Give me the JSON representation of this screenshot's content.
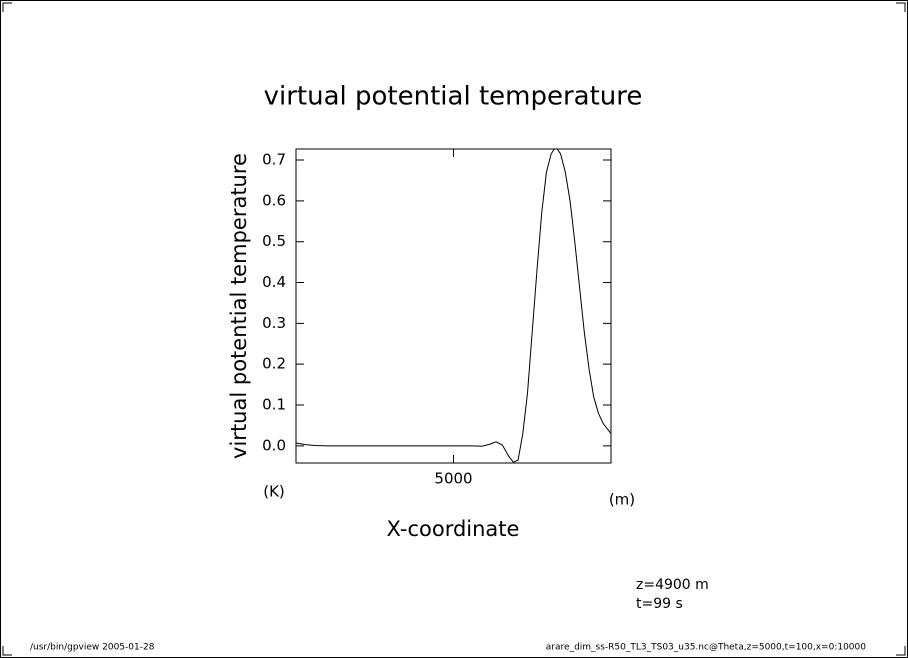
{
  "chart_data": {
    "type": "line",
    "title": "virtual potential temperature",
    "y_label": "virtual potential temperature",
    "y_unit": "(K)",
    "x_label": "X-coordinate",
    "x_unit": "(m)",
    "annotations": [
      "z=4900 m",
      "t=99 s"
    ],
    "footer_left": "/usr/bin/gpview  2005-01-28",
    "footer_right": "arare_dim_ss-R50_TL3_TS03_u35.nc@Theta,z=5000,t=100,x=0:10000",
    "x": [
      0,
      300,
      600,
      1000,
      2000,
      3000,
      4000,
      5000,
      5600,
      5900,
      6150,
      6350,
      6550,
      6750,
      6900,
      7050,
      7200,
      7350,
      7500,
      7650,
      7800,
      7950,
      8100,
      8200,
      8290,
      8400,
      8550,
      8700,
      8850,
      9000,
      9150,
      9300,
      9450,
      9600,
      9750,
      9900,
      10000
    ],
    "values": [
      0.007,
      0.003,
      0.001,
      0,
      0,
      0,
      0,
      0,
      0,
      -0.001,
      0.004,
      0.01,
      0.002,
      -0.025,
      -0.04,
      -0.035,
      0.03,
      0.13,
      0.28,
      0.43,
      0.57,
      0.67,
      0.715,
      0.727,
      0.727,
      0.715,
      0.67,
      0.6,
      0.5,
      0.39,
      0.28,
      0.19,
      0.12,
      0.08,
      0.055,
      0.04,
      0.03
    ],
    "color": "#000000",
    "xlim": [
      0,
      10000
    ],
    "xticks": [
      5000
    ],
    "ylim": [
      -0.042,
      0.727
    ],
    "yticks": [
      {
        "value": 0,
        "label": "0.0"
      },
      0.1,
      0.2,
      0.3,
      0.4,
      0.5,
      0.6,
      0.7
    ]
  }
}
